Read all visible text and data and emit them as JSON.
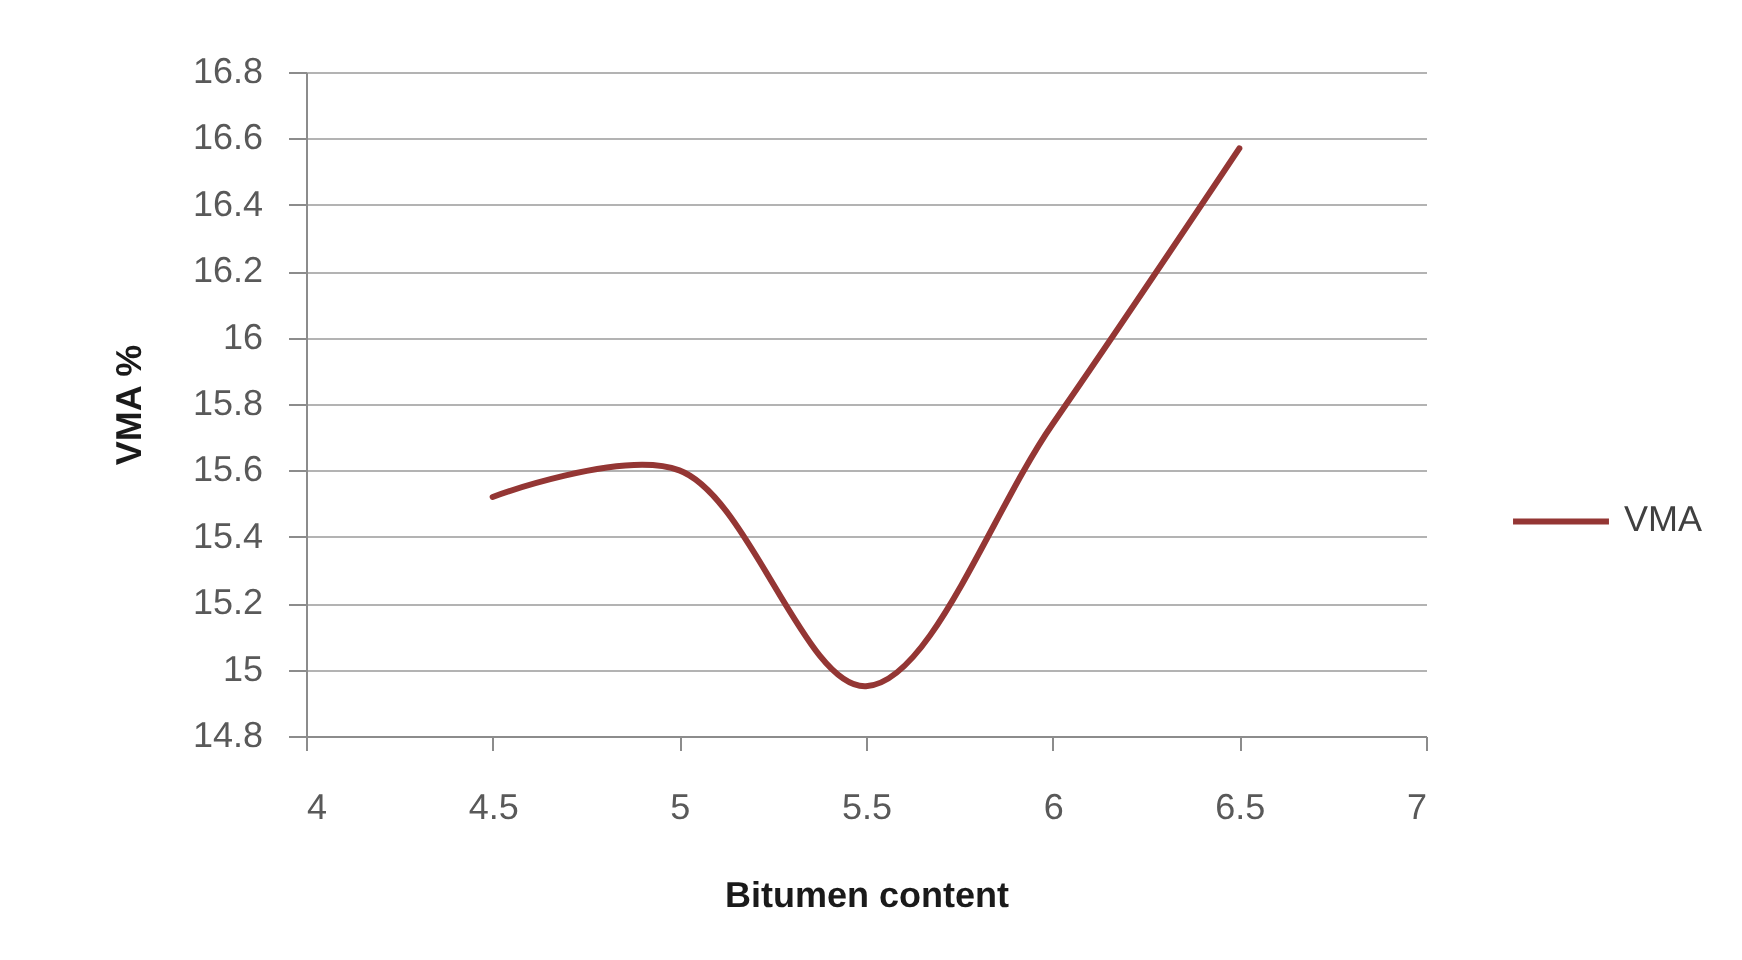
{
  "chart_data": {
    "type": "line",
    "xlabel": "Bitumen content",
    "ylabel": "VMA %",
    "x": [
      4.5,
      5,
      5.5,
      6,
      6.5
    ],
    "series": [
      {
        "name": "VMA",
        "color": "#943634",
        "values": [
          15.52,
          15.6,
          14.95,
          15.74,
          16.57
        ]
      }
    ],
    "xlim": [
      4,
      7
    ],
    "xticks": [
      4,
      4.5,
      5,
      5.5,
      6,
      6.5,
      7
    ],
    "ylim": [
      14.8,
      16.8
    ],
    "yticks": [
      14.8,
      15,
      15.2,
      15.4,
      15.6,
      15.8,
      16,
      16.2,
      16.4,
      16.6,
      16.8
    ],
    "grid": "y",
    "legend": "right",
    "marker": "none",
    "line_style": "solid"
  }
}
